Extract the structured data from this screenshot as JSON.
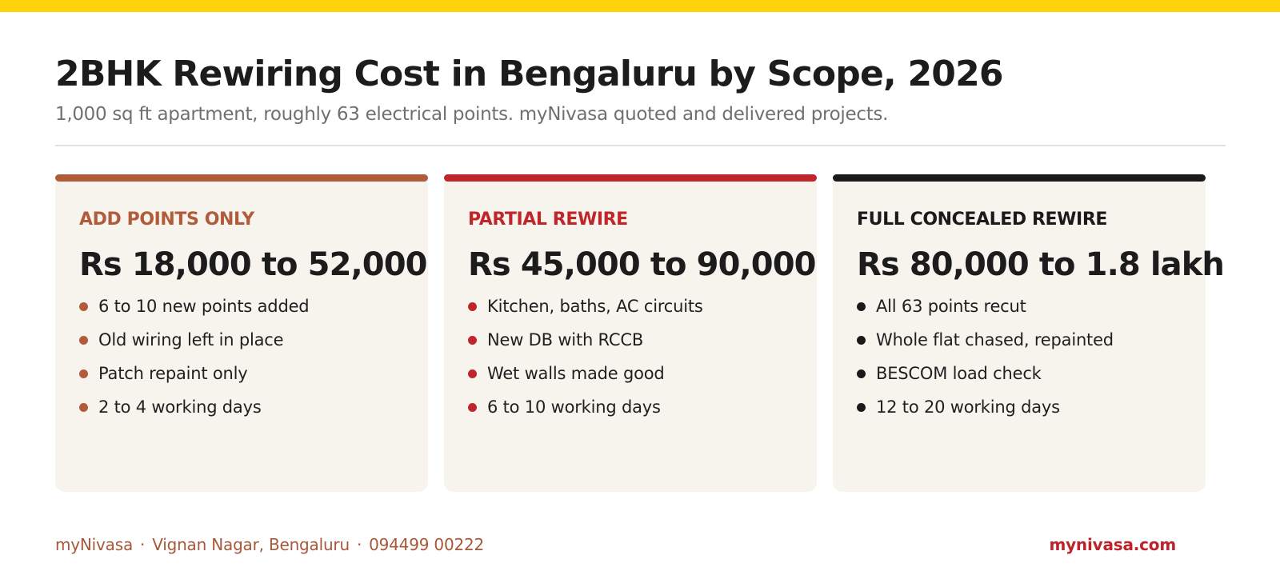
{
  "header": {
    "title": "2BHK Rewiring Cost in Bengaluru by Scope, 2026",
    "subtitle": "1,000 sq ft apartment, roughly 63 electrical points. myNivasa quoted and delivered projects."
  },
  "cards": [
    {
      "label": "ADD POINTS ONLY",
      "price": "Rs 18,000 to 52,000",
      "accent": "#b05c3b",
      "bullets": [
        "6 to 10 new points added",
        "Old wiring left in place",
        "Patch repaint only",
        "2 to 4 working days"
      ]
    },
    {
      "label": "PARTIAL REWIRE",
      "price": "Rs 45,000 to 90,000",
      "accent": "#c0252b",
      "bullets": [
        "Kitchen, baths, AC circuits",
        "New DB with RCCB",
        "Wet walls made good",
        "6 to 10 working days"
      ]
    },
    {
      "label": "FULL CONCEALED REWIRE",
      "price": "Rs 80,000 to 1.8 lakh",
      "accent": "#1a1a1a",
      "bullets": [
        "All 63 points recut",
        "Whole flat chased, repainted",
        "BESCOM load check",
        "12 to 20 working days"
      ]
    }
  ],
  "footer": {
    "brand": "myNivasa",
    "separator": "·",
    "location": "Vignan Nagar, Bengaluru",
    "phone": "094499 00222",
    "website": "mynivasa.com"
  },
  "colors": {
    "top_bar": "#ffd20a",
    "card_background": "#f7f4ee",
    "footer_text": "#a8573a",
    "website_text": "#c0222a"
  }
}
